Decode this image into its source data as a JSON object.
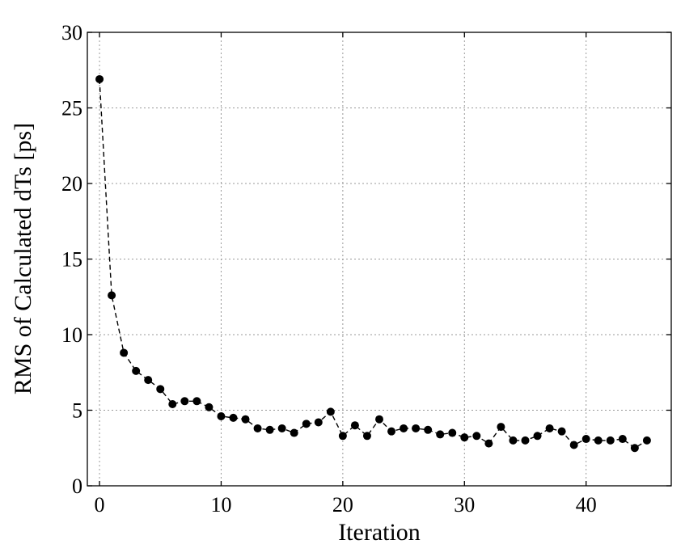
{
  "chart_data": {
    "type": "line",
    "title": "",
    "xlabel": "Iteration",
    "ylabel": "RMS of Calculated dTs [ps]",
    "xlim": [
      -1,
      47
    ],
    "ylim": [
      0,
      30
    ],
    "xticks": [
      0,
      10,
      20,
      30,
      40
    ],
    "yticks": [
      0,
      5,
      10,
      15,
      20,
      25,
      30
    ],
    "grid": true,
    "line_style": "dashed",
    "marker": "filled-circle",
    "color": "#000000",
    "series": [
      {
        "x": [
          0,
          1,
          2,
          3,
          4,
          5,
          6,
          7,
          8,
          9,
          10,
          11,
          12,
          13,
          14,
          15,
          16,
          17,
          18,
          19,
          20,
          21,
          22,
          23,
          24,
          25,
          26,
          27,
          28,
          29,
          30,
          31,
          32,
          33,
          34,
          35,
          36,
          37,
          38,
          39,
          40,
          41,
          42,
          43,
          44,
          45
        ],
        "values": [
          26.9,
          12.6,
          8.8,
          7.6,
          7.0,
          6.4,
          5.4,
          5.6,
          5.6,
          5.2,
          4.6,
          4.5,
          4.4,
          3.8,
          3.7,
          3.8,
          3.5,
          4.1,
          4.2,
          4.9,
          3.3,
          4.0,
          3.3,
          4.4,
          3.6,
          3.8,
          3.8,
          3.7,
          3.4,
          3.5,
          3.2,
          3.3,
          2.8,
          3.9,
          3.0,
          3.0,
          3.3,
          3.8,
          3.6,
          2.7,
          3.1,
          3.0,
          3.0,
          3.1,
          2.5,
          3.0
        ]
      }
    ]
  }
}
